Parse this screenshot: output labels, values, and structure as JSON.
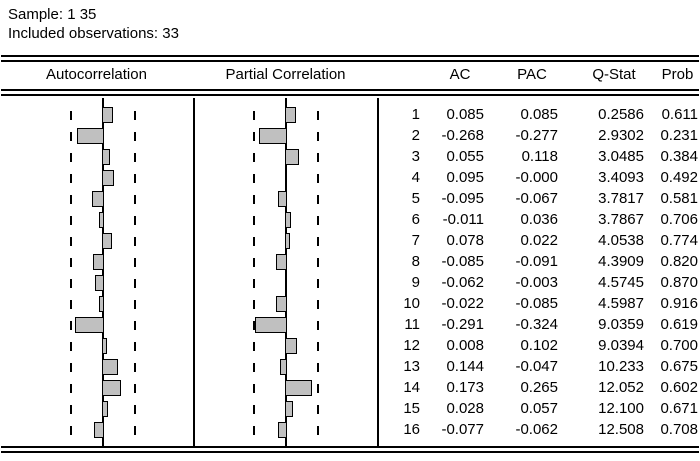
{
  "title_block": {
    "sample": "Sample: 1 35",
    "observations": "Included observations: 33"
  },
  "columns": {
    "autocorrelation": "Autocorrelation",
    "partial_correlation": "Partial Correlation",
    "ac": "AC",
    "pac": "PAC",
    "qstat": "Q-Stat",
    "prob": "Prob"
  },
  "colors": {
    "bar_fill": "#c0c0c0",
    "line": "#000000",
    "background": "#ffffff"
  },
  "rows": [
    {
      "lag": "1",
      "ac": "0.085",
      "pac": "0.085",
      "qstat": "0.2586",
      "prob": "0.611"
    },
    {
      "lag": "2",
      "ac": "-0.268",
      "pac": "-0.277",
      "qstat": "2.9302",
      "prob": "0.231"
    },
    {
      "lag": "3",
      "ac": "0.055",
      "pac": "0.118",
      "qstat": "3.0485",
      "prob": "0.384"
    },
    {
      "lag": "4",
      "ac": "0.095",
      "pac": "-0.000",
      "qstat": "3.4093",
      "prob": "0.492"
    },
    {
      "lag": "5",
      "ac": "-0.095",
      "pac": "-0.067",
      "qstat": "3.7817",
      "prob": "0.581"
    },
    {
      "lag": "6",
      "ac": "-0.011",
      "pac": "0.036",
      "qstat": "3.7867",
      "prob": "0.706"
    },
    {
      "lag": "7",
      "ac": "0.078",
      "pac": "0.022",
      "qstat": "4.0538",
      "prob": "0.774"
    },
    {
      "lag": "8",
      "ac": "-0.085",
      "pac": "-0.091",
      "qstat": "4.3909",
      "prob": "0.820"
    },
    {
      "lag": "9",
      "ac": "-0.062",
      "pac": "-0.003",
      "qstat": "4.5745",
      "prob": "0.870"
    },
    {
      "lag": "10",
      "ac": "-0.022",
      "pac": "-0.085",
      "qstat": "4.5987",
      "prob": "0.916"
    },
    {
      "lag": "11",
      "ac": "-0.291",
      "pac": "-0.324",
      "qstat": "9.0359",
      "prob": "0.619"
    },
    {
      "lag": "12",
      "ac": "0.008",
      "pac": "0.102",
      "qstat": "9.0394",
      "prob": "0.700"
    },
    {
      "lag": "13",
      "ac": "0.144",
      "pac": "-0.047",
      "qstat": "10.233",
      "prob": "0.675"
    },
    {
      "lag": "14",
      "ac": "0.173",
      "pac": "0.265",
      "qstat": "12.052",
      "prob": "0.602"
    },
    {
      "lag": "15",
      "ac": "0.028",
      "pac": "0.057",
      "qstat": "12.100",
      "prob": "0.671"
    },
    {
      "lag": "16",
      "ac": "-0.077",
      "pac": "-0.062",
      "qstat": "12.508",
      "prob": "0.708"
    }
  ],
  "chart_data": {
    "type": "bar",
    "subtype": "correlogram",
    "orientation": "horizontal",
    "title": "Correlogram (Sample: 1 35, Included observations: 33)",
    "categories": [
      1,
      2,
      3,
      4,
      5,
      6,
      7,
      8,
      9,
      10,
      11,
      12,
      13,
      14,
      15,
      16
    ],
    "series": [
      {
        "name": "AC",
        "values": [
          0.085,
          -0.268,
          0.055,
          0.095,
          -0.095,
          -0.011,
          0.078,
          -0.085,
          -0.062,
          -0.022,
          -0.291,
          0.008,
          0.144,
          0.173,
          0.028,
          -0.077
        ]
      },
      {
        "name": "PAC",
        "values": [
          0.085,
          -0.277,
          0.118,
          -0.0,
          -0.067,
          0.036,
          0.022,
          -0.091,
          -0.003,
          -0.085,
          -0.324,
          0.102,
          -0.047,
          0.265,
          0.057,
          -0.062
        ]
      },
      {
        "name": "Q-Stat",
        "values": [
          0.2586,
          2.9302,
          3.0485,
          3.4093,
          3.7817,
          3.7867,
          4.0538,
          4.3909,
          4.5745,
          4.5987,
          9.0359,
          9.0394,
          10.233,
          12.052,
          12.1,
          12.508
        ]
      },
      {
        "name": "Prob",
        "values": [
          0.611,
          0.231,
          0.384,
          0.492,
          0.581,
          0.706,
          0.774,
          0.82,
          0.87,
          0.916,
          0.619,
          0.7,
          0.675,
          0.602,
          0.671,
          0.708
        ]
      }
    ],
    "confidence_bound": 0.348,
    "xlim": [
      -0.5,
      0.5
    ],
    "grid": false,
    "legend_position": "none"
  }
}
